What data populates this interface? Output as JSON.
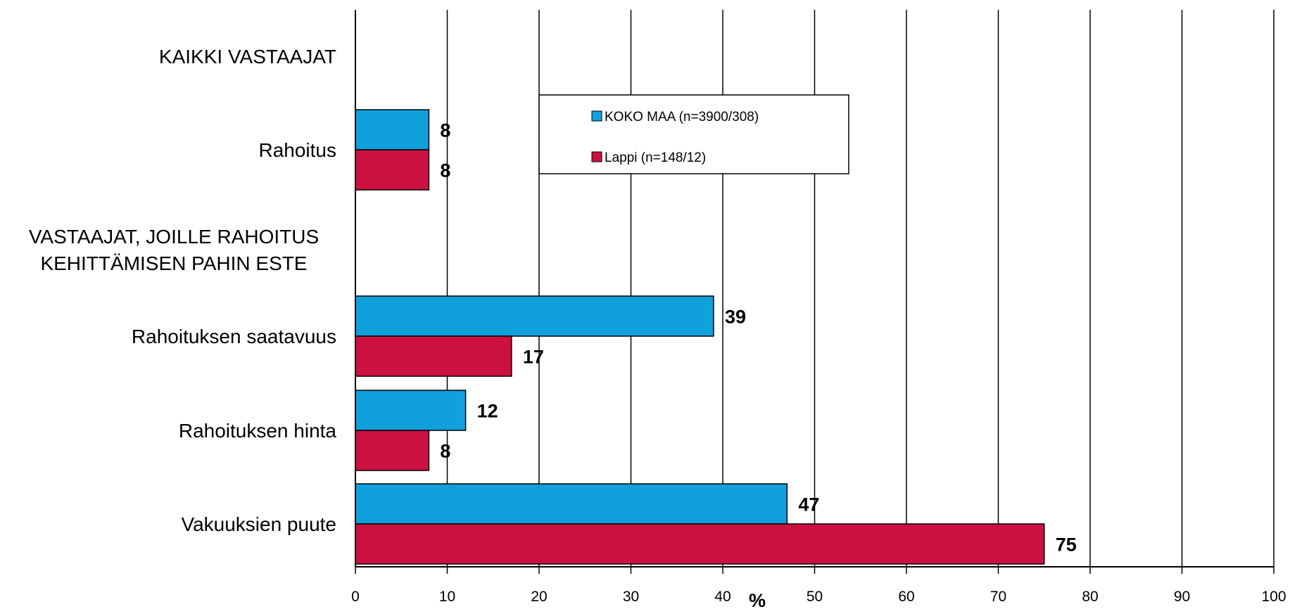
{
  "chart_data": {
    "type": "bar",
    "orientation": "horizontal",
    "xlabel": "%",
    "xlim": [
      0,
      100
    ],
    "xticks": [
      0,
      10,
      20,
      30,
      40,
      50,
      60,
      70,
      80,
      90,
      100
    ],
    "grid": "vertical",
    "legend_position": "top-center",
    "categories": [
      "KAIKKI VASTAAJAT",
      "Rahoitus",
      "VASTAAJAT, JOILLE RAHOITUS KEHITTÄMISEN PAHIN ESTE",
      "Rahoituksen saatavuus",
      "Rahoituksen hinta",
      "Vakuuksien puute"
    ],
    "category_lines": [
      [
        "KAIKKI VASTAAJAT"
      ],
      [
        "Rahoitus"
      ],
      [
        "VASTAAJAT, JOILLE RAHOITUS",
        "KEHITTÄMISEN PAHIN ESTE"
      ],
      [
        "Rahoituksen saatavuus"
      ],
      [
        "Rahoituksen hinta"
      ],
      [
        "Vakuuksien puute"
      ]
    ],
    "series": [
      {
        "name": "KOKO MAA  (n=3900/308)",
        "color": "#10A0DC",
        "values": [
          null,
          8,
          null,
          39,
          12,
          47
        ]
      },
      {
        "name": "Lappi (n=148/12)",
        "color": "#CC1040",
        "values": [
          null,
          8,
          null,
          17,
          8,
          75
        ]
      }
    ]
  }
}
